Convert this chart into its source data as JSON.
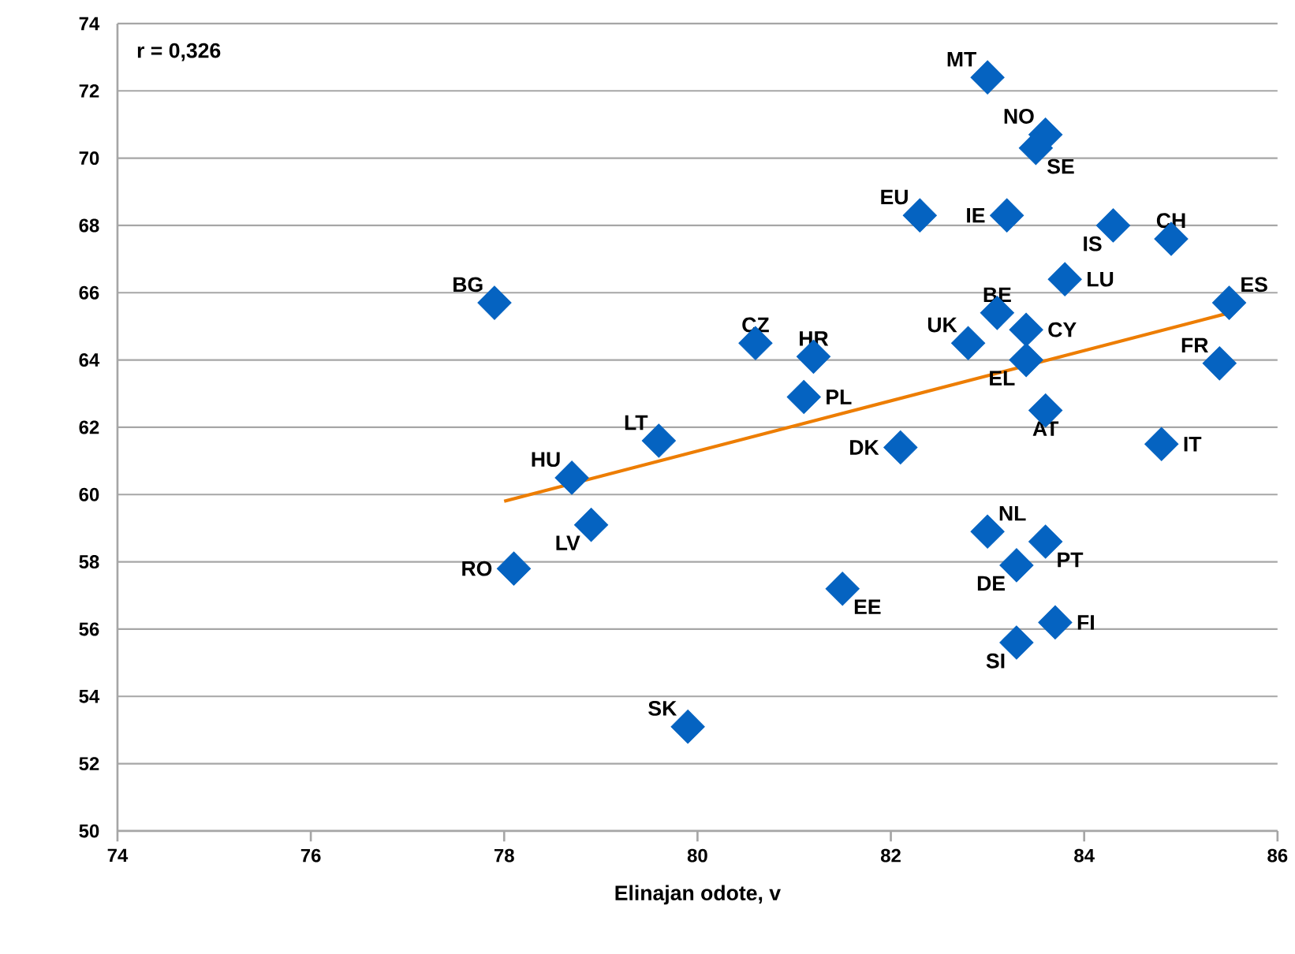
{
  "chart_data": {
    "type": "scatter",
    "xlabel": "Elinajan odote, v",
    "xlim": [
      74,
      86
    ],
    "xticks": [
      74,
      76,
      78,
      80,
      82,
      84,
      86
    ],
    "ylim": [
      50,
      74
    ],
    "yticks": [
      50,
      52,
      54,
      56,
      58,
      60,
      62,
      64,
      66,
      68,
      70,
      72,
      74
    ],
    "grid": "y",
    "marker": "diamond",
    "series": [
      {
        "color": "#0563c1",
        "x": [
          83.0,
          83.6,
          83.5,
          82.3,
          83.2,
          84.3,
          84.9,
          83.8,
          77.9,
          85.5,
          83.1,
          83.4,
          80.6,
          82.8,
          81.2,
          83.4,
          85.4,
          81.1,
          83.6,
          79.6,
          84.8,
          82.1,
          78.7,
          78.9,
          83.0,
          83.6,
          83.3,
          78.1,
          81.5,
          83.7,
          83.3,
          79.9
        ],
        "values": [
          72.4,
          70.7,
          70.3,
          68.3,
          68.3,
          68.0,
          67.6,
          66.4,
          65.7,
          65.7,
          65.4,
          64.9,
          64.5,
          64.5,
          64.1,
          64.0,
          63.9,
          62.9,
          62.5,
          61.6,
          61.5,
          61.4,
          60.5,
          59.1,
          58.9,
          58.6,
          57.9,
          57.8,
          57.2,
          56.2,
          55.6,
          53.1
        ]
      },
      {
        "type": "line",
        "color": "#ed7d00",
        "marker": "none",
        "x": [
          78.0,
          85.5
        ],
        "values": [
          59.8,
          65.4
        ]
      }
    ],
    "annotations": [
      "r = 0,326",
      {
        "text": "MT",
        "x": 83.0,
        "y": 72.4
      },
      {
        "text": "NO",
        "x": 83.6,
        "y": 70.7
      },
      {
        "text": "SE",
        "x": 83.5,
        "y": 70.3
      },
      {
        "text": "EU",
        "x": 82.3,
        "y": 68.3
      },
      {
        "text": "IE",
        "x": 83.2,
        "y": 68.3
      },
      {
        "text": "IS",
        "x": 84.3,
        "y": 68.0
      },
      {
        "text": "CH",
        "x": 84.9,
        "y": 67.6
      },
      {
        "text": "LU",
        "x": 83.8,
        "y": 66.4
      },
      {
        "text": "BG",
        "x": 77.9,
        "y": 65.7
      },
      {
        "text": "ES",
        "x": 85.5,
        "y": 65.7
      },
      {
        "text": "BE",
        "x": 83.1,
        "y": 65.4
      },
      {
        "text": "CY",
        "x": 83.4,
        "y": 64.9
      },
      {
        "text": "CZ",
        "x": 80.6,
        "y": 64.5
      },
      {
        "text": "UK",
        "x": 82.8,
        "y": 64.5
      },
      {
        "text": "HR",
        "x": 81.2,
        "y": 64.1
      },
      {
        "text": "EL",
        "x": 83.4,
        "y": 64.0
      },
      {
        "text": "FR",
        "x": 85.4,
        "y": 63.9
      },
      {
        "text": "PL",
        "x": 81.1,
        "y": 62.9
      },
      {
        "text": "AT",
        "x": 83.6,
        "y": 62.5
      },
      {
        "text": "LT",
        "x": 79.6,
        "y": 61.6
      },
      {
        "text": "IT",
        "x": 84.8,
        "y": 61.5
      },
      {
        "text": "DK",
        "x": 82.1,
        "y": 61.4
      },
      {
        "text": "HU",
        "x": 78.7,
        "y": 60.5
      },
      {
        "text": "LV",
        "x": 78.9,
        "y": 59.1
      },
      {
        "text": "NL",
        "x": 83.0,
        "y": 58.9
      },
      {
        "text": "PT",
        "x": 83.6,
        "y": 58.6
      },
      {
        "text": "DE",
        "x": 83.3,
        "y": 57.9
      },
      {
        "text": "RO",
        "x": 78.1,
        "y": 57.8
      },
      {
        "text": "EE",
        "x": 81.5,
        "y": 57.2
      },
      {
        "text": "FI",
        "x": 83.7,
        "y": 56.2
      },
      {
        "text": "SI",
        "x": 83.3,
        "y": 55.6
      },
      {
        "text": "SK",
        "x": 79.9,
        "y": 53.1
      }
    ]
  }
}
